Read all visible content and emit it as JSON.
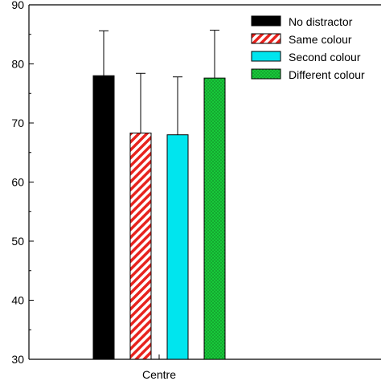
{
  "chart_data": {
    "type": "bar",
    "categories": [
      "Centre"
    ],
    "xlabel": "",
    "ylabel": "",
    "ylim": [
      30,
      90
    ],
    "yticks": [
      30,
      40,
      50,
      60,
      70,
      80,
      90
    ],
    "grid": false,
    "legend_position": "top-right",
    "series": [
      {
        "name": "No distractor",
        "values": [
          78.0
        ],
        "error": [
          7.6
        ],
        "color": "#000000",
        "pattern": "solid"
      },
      {
        "name": "Same colour",
        "values": [
          68.3
        ],
        "error": [
          10.1
        ],
        "color": "#e8231e",
        "pattern": "diagonal-stripes"
      },
      {
        "name": "Second colour",
        "values": [
          68.0
        ],
        "error": [
          9.8
        ],
        "color": "#00e5ee",
        "pattern": "solid"
      },
      {
        "name": "Different colour",
        "values": [
          77.6
        ],
        "error": [
          8.1
        ],
        "color": "#18c83a",
        "pattern": "dots"
      }
    ]
  }
}
